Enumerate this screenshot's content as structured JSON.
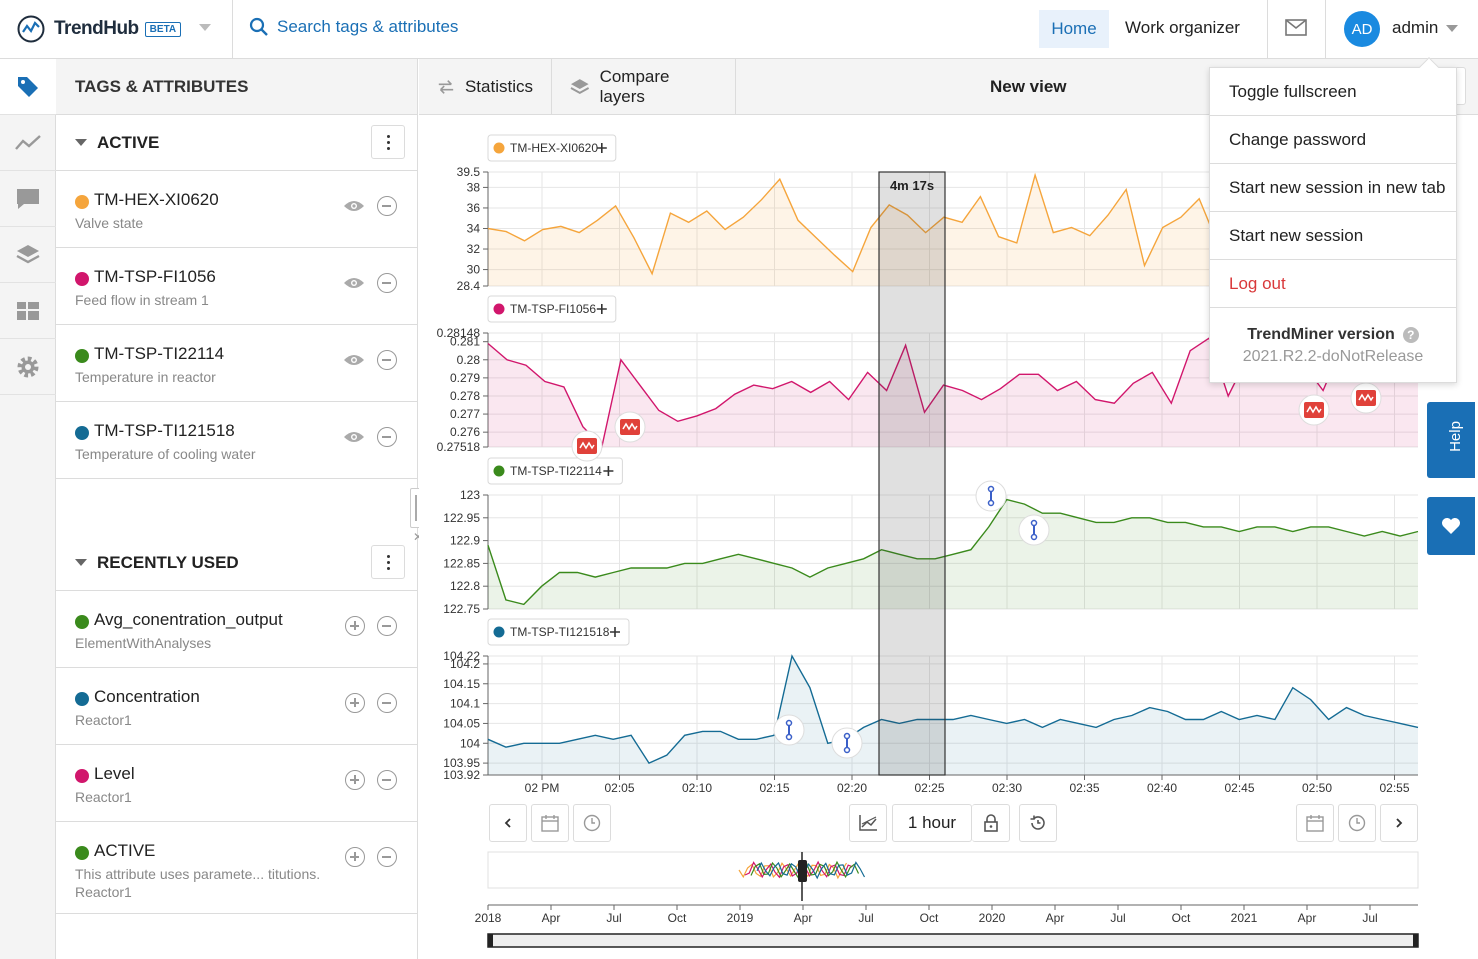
{
  "app": {
    "brand": "TrendHub",
    "badge": "BETA"
  },
  "search": {
    "label": "Search tags & attributes"
  },
  "nav": {
    "home": "Home",
    "work_organizer": "Work organizer",
    "avatar_initials": "AD",
    "user": "admin"
  },
  "panel": {
    "title": "TAGS & ATTRIBUTES",
    "active_header": "ACTIVE",
    "recent_header": "RECENTLY USED",
    "active_items": [
      {
        "name": "TM-HEX-XI0620",
        "desc": "Valve state",
        "color": "#f5a53c"
      },
      {
        "name": "TM-TSP-FI1056",
        "desc": "Feed flow in stream 1",
        "color": "#d1166c"
      },
      {
        "name": "TM-TSP-TI22114",
        "desc": "Temperature in reactor",
        "color": "#3a8a1c"
      },
      {
        "name": "TM-TSP-TI121518",
        "desc": "Temperature of cooling water",
        "color": "#146b94"
      }
    ],
    "recent_items": [
      {
        "name": "Avg_conentration_output",
        "desc": "ElementWithAnalyses",
        "color": "#3a8a1c"
      },
      {
        "name": "Concentration",
        "desc": "Reactor1",
        "color": "#146b94"
      },
      {
        "name": "Level",
        "desc": "Reactor1",
        "color": "#d1166c"
      },
      {
        "name": "ACTIVE",
        "desc": "This attribute uses paramete... titutions.",
        "desc2": "Reactor1",
        "color": "#3a8a1c"
      }
    ]
  },
  "main": {
    "statistics": "Statistics",
    "compare_layers": "Compare layers",
    "view_title": "New view"
  },
  "selection": {
    "label": "4m 17s"
  },
  "timeline": {
    "range_label": "1 hour"
  },
  "dropdown": {
    "items": [
      "Toggle fullscreen",
      "Change password",
      "Start new session in new tab",
      "Start new session"
    ],
    "logout": "Log out",
    "version_title": "TrendMiner version",
    "version_value": "2021.R2.2-doNotRelease"
  },
  "help": {
    "label": "Help"
  },
  "chart_data": [
    {
      "type": "line",
      "series": [
        {
          "name": "TM-HEX-XI0620",
          "color": "#f5a53c",
          "values": [
            34,
            33.7,
            32.8,
            33.9,
            34.2,
            33.6,
            34.8,
            36.2,
            33.1,
            29.6,
            35.5,
            34.6,
            35.7,
            33.9,
            35.1,
            36.8,
            38.8,
            34.8,
            33.1,
            31.4,
            29.8,
            34.1,
            36.3,
            35.3,
            33.6,
            35.1,
            34.6,
            37.1,
            33.2,
            32.6,
            39.2,
            33.6,
            34.1,
            33.3,
            35.3,
            37.8,
            30.4,
            34.1,
            35.1,
            36.9,
            32.6,
            36.1,
            37.2,
            35.3,
            32.8,
            33.1,
            38.6,
            33.6,
            32.6,
            36.2,
            38.6,
            28.4
          ]
        }
      ],
      "y_ticks": [
        "39.5",
        "38",
        "36",
        "34",
        "32",
        "30",
        "28.4"
      ],
      "ylim": [
        28.4,
        39.5
      ]
    },
    {
      "type": "line",
      "series": [
        {
          "name": "TM-TSP-FI1056",
          "color": "#d1166c",
          "values": [
            0.2809,
            0.28,
            0.2797,
            0.2788,
            0.2785,
            0.2763,
            0.2752,
            0.28,
            0.2786,
            0.2772,
            0.2766,
            0.2769,
            0.2773,
            0.2781,
            0.2786,
            0.2784,
            0.2788,
            0.2782,
            0.2788,
            0.2778,
            0.2793,
            0.2783,
            0.2808,
            0.2771,
            0.2786,
            0.2783,
            0.2778,
            0.2784,
            0.2792,
            0.2792,
            0.2783,
            0.2788,
            0.2778,
            0.2776,
            0.2787,
            0.2793,
            0.2776,
            0.2805,
            0.2812,
            0.278,
            0.2801,
            0.2804,
            0.2792,
            0.2797,
            0.2783,
            0.2808,
            0.2807,
            0.2804,
            0.28,
            0.28
          ]
        }
      ],
      "y_ticks": [
        "0.28148",
        "0.281",
        "0.28",
        "0.279",
        "0.278",
        "0.277",
        "0.276",
        "0.27518"
      ],
      "ylim": [
        0.27518,
        0.28148
      ]
    },
    {
      "type": "line",
      "series": [
        {
          "name": "TM-TSP-TI22114",
          "color": "#3a8a1c",
          "values": [
            122.89,
            122.77,
            122.76,
            122.8,
            122.83,
            122.83,
            122.82,
            122.83,
            122.84,
            122.84,
            122.84,
            122.85,
            122.85,
            122.86,
            122.87,
            122.86,
            122.85,
            122.84,
            122.82,
            122.84,
            122.85,
            122.86,
            122.88,
            122.87,
            122.86,
            122.86,
            122.87,
            122.88,
            122.93,
            122.99,
            122.98,
            122.96,
            122.96,
            122.95,
            122.94,
            122.94,
            122.95,
            122.95,
            122.94,
            122.94,
            122.93,
            122.93,
            122.92,
            122.93,
            122.93,
            122.92,
            122.93,
            122.93,
            122.92,
            122.91,
            122.92,
            122.91,
            122.92
          ]
        }
      ],
      "y_ticks": [
        "123",
        "122.95",
        "122.9",
        "122.85",
        "122.8",
        "122.75"
      ],
      "ylim": [
        122.75,
        123
      ]
    },
    {
      "type": "line",
      "series": [
        {
          "name": "TM-TSP-TI121518",
          "color": "#146b94",
          "values": [
            104.01,
            103.99,
            104,
            104,
            104,
            104.01,
            104.02,
            104.01,
            104.02,
            103.95,
            103.97,
            104.02,
            104.03,
            104.03,
            104.01,
            104.01,
            104.02,
            104.22,
            104.14,
            104,
            104.01,
            104.04,
            104.06,
            104.05,
            104.06,
            104.06,
            104.06,
            104.07,
            104.06,
            104.05,
            104.06,
            104.04,
            104.06,
            104.05,
            104.04,
            104.06,
            104.07,
            104.09,
            104.08,
            104.06,
            104.06,
            104.08,
            104.06,
            104.07,
            104.06,
            104.14,
            104.11,
            104.06,
            104.09,
            104.07,
            104.06,
            104.05,
            104.04
          ]
        }
      ],
      "y_ticks": [
        "104.22",
        "104.2",
        "104.15",
        "104.1",
        "104.05",
        "104",
        "103.95",
        "103.92"
      ],
      "ylim": [
        103.92,
        104.22
      ]
    },
    {
      "type": "line",
      "x_ticks": [
        "02 PM",
        "02:05",
        "02:10",
        "02:15",
        "02:20",
        "02:25",
        "02:30",
        "02:35",
        "02:40",
        "02:45",
        "02:50",
        "02:55"
      ]
    },
    {
      "type": "line",
      "x_ticks": [
        "2018",
        "Apr",
        "Jul",
        "Oct",
        "2019",
        "Apr",
        "Jul",
        "Oct",
        "2020",
        "Apr",
        "Jul",
        "Oct",
        "2021",
        "Apr",
        "Jul"
      ]
    }
  ]
}
